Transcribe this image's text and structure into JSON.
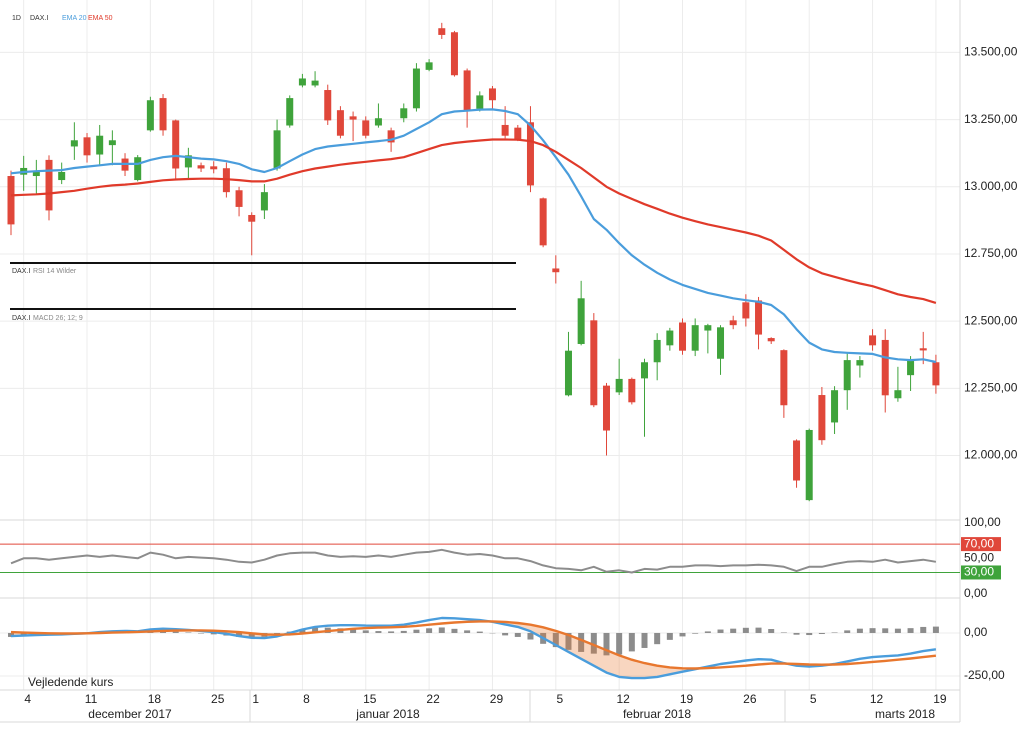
{
  "chart_data": [
    {
      "type": "candlestick",
      "interval": "1D",
      "footer": "Vejledende kurs",
      "categories": [
        null,
        "4",
        null,
        null,
        null,
        null,
        "11",
        null,
        null,
        null,
        null,
        "18",
        null,
        null,
        null,
        null,
        "25",
        null,
        null,
        "1",
        null,
        null,
        null,
        "8",
        null,
        null,
        null,
        null,
        "15",
        null,
        null,
        null,
        null,
        "22",
        null,
        null,
        null,
        null,
        "29",
        null,
        null,
        null,
        null,
        "5",
        null,
        null,
        null,
        null,
        "12",
        null,
        null,
        null,
        null,
        "19",
        null,
        null,
        null,
        null,
        "26",
        null,
        null,
        null,
        null,
        "5",
        null,
        null,
        null,
        null,
        "12",
        null,
        null,
        null,
        null,
        "19"
      ],
      "x_groups": [
        "december 2017",
        "januar 2018",
        "februar 2018",
        "marts 2018"
      ],
      "ylim": [
        11760,
        13695
      ],
      "yticks": [
        {
          "value": 12000,
          "label": "12.000,00"
        },
        {
          "value": 12250,
          "label": "12.250,00"
        },
        {
          "value": 12500,
          "label": "12.500,00"
        },
        {
          "value": 12750,
          "label": "12.750,00"
        },
        {
          "value": 13000,
          "label": "13.000,00"
        },
        {
          "value": 13250,
          "label": "13.250,00"
        },
        {
          "value": 13500,
          "label": "13.500,00"
        }
      ],
      "grid": true,
      "series": [
        {
          "name": "DAX.I",
          "up_color": "#3fa33b",
          "down_color": "#e0473a",
          "open": [
            13040,
            13045,
            13040,
            13100,
            13025,
            13150,
            13184,
            13120,
            13155,
            13105,
            13025,
            13210,
            13330,
            13247,
            13072,
            13080,
            13076,
            13069,
            12987,
            12895,
            12912,
            13068,
            13228,
            13377,
            13377,
            13360,
            13285,
            13262,
            13247,
            13228,
            13210,
            13255,
            13292,
            13435,
            13590,
            13575,
            13433,
            13290,
            13366,
            13230,
            13220,
            13240,
            12957,
            12696,
            12224,
            12415,
            12503,
            12260,
            12235,
            12285,
            12287,
            12347,
            12410,
            12495,
            12390,
            12465,
            12360,
            12503,
            12570,
            12577,
            12437,
            12392,
            12056,
            11834,
            12225,
            12123,
            12243,
            12335,
            12447,
            12430,
            12213,
            12299,
            12399,
            12347
          ],
          "high": [
            13060,
            13115,
            13100,
            13117,
            13090,
            13240,
            13200,
            13230,
            13210,
            13125,
            13118,
            13335,
            13345,
            13250,
            13145,
            13090,
            13095,
            13090,
            13000,
            12905,
            13010,
            13250,
            13340,
            13420,
            13430,
            13380,
            13300,
            13280,
            13262,
            13310,
            13220,
            13310,
            13460,
            13475,
            13610,
            13580,
            13440,
            13355,
            13375,
            13300,
            13230,
            13300,
            12960,
            12745,
            12460,
            12650,
            12530,
            12270,
            12360,
            12290,
            12360,
            12455,
            12475,
            12510,
            12510,
            12490,
            12485,
            12520,
            12600,
            12590,
            12440,
            12395,
            12060,
            12100,
            12255,
            12258,
            12380,
            12370,
            12470,
            12470,
            12330,
            12370,
            12460,
            12375
          ],
          "low": [
            12820,
            12985,
            12970,
            12875,
            13010,
            13100,
            13090,
            13080,
            13080,
            13040,
            13020,
            13205,
            13190,
            13030,
            13030,
            13055,
            13050,
            12960,
            12890,
            12745,
            12880,
            13060,
            13220,
            13370,
            13370,
            13230,
            13180,
            13170,
            13180,
            13220,
            13130,
            13240,
            13280,
            13430,
            13550,
            13410,
            13220,
            13280,
            13290,
            13180,
            13170,
            12980,
            12775,
            12640,
            12220,
            12410,
            12180,
            12000,
            12225,
            12190,
            12070,
            12280,
            12390,
            12375,
            12370,
            12380,
            12300,
            12470,
            12480,
            12395,
            12415,
            12140,
            11880,
            11830,
            12040,
            12080,
            12170,
            12290,
            12390,
            12160,
            12200,
            12240,
            12340,
            12230
          ],
          "close": [
            12860,
            13070,
            13060,
            12912,
            13055,
            13173,
            13117,
            13190,
            13173,
            13060,
            13110,
            13322,
            13210,
            13068,
            13117,
            13068,
            13065,
            12980,
            12925,
            12870,
            12980,
            13210,
            13330,
            13403,
            13395,
            13247,
            13190,
            13250,
            13190,
            13255,
            13165,
            13292,
            13440,
            13463,
            13565,
            13415,
            13285,
            13340,
            13322,
            13190,
            13175,
            13005,
            12782,
            12682,
            12390,
            12585,
            12187,
            12093,
            12285,
            12198,
            12347,
            12430,
            12465,
            12390,
            12485,
            12485,
            12477,
            12485,
            12510,
            12450,
            12425,
            12187,
            11907,
            12095,
            12057,
            12243,
            12355,
            12355,
            12410,
            12224,
            12243,
            12354,
            12391,
            12261
          ]
        },
        {
          "name": "EMA 20",
          "color": "#4a9ddc",
          "values": [
            13050,
            13055,
            13058,
            13060,
            13062,
            13070,
            13075,
            13080,
            13085,
            13085,
            13085,
            13100,
            13110,
            13115,
            13110,
            13105,
            13102,
            13095,
            13085,
            13065,
            13055,
            13070,
            13095,
            13120,
            13140,
            13150,
            13155,
            13160,
            13165,
            13170,
            13175,
            13190,
            13215,
            13240,
            13270,
            13280,
            13283,
            13287,
            13288,
            13282,
            13270,
            13228,
            13173,
            13110,
            13045,
            12965,
            12880,
            12840,
            12790,
            12745,
            12710,
            12680,
            12655,
            12635,
            12620,
            12605,
            12595,
            12585,
            12578,
            12572,
            12560,
            12525,
            12470,
            12420,
            12395,
            12385,
            12382,
            12380,
            12378,
            12365,
            12358,
            12355,
            12358,
            12348
          ]
        },
        {
          "name": "EMA 50",
          "color": "#e03a2a",
          "values": [
            12968,
            12970,
            12972,
            12975,
            12980,
            12985,
            12993,
            13000,
            13005,
            13008,
            13012,
            13018,
            13024,
            13027,
            13029,
            13030,
            13030,
            13028,
            13025,
            13020,
            13020,
            13030,
            13045,
            13058,
            13068,
            13075,
            13082,
            13088,
            13093,
            13098,
            13103,
            13110,
            13125,
            13140,
            13155,
            13163,
            13168,
            13172,
            13176,
            13176,
            13175,
            13170,
            13155,
            13130,
            13100,
            13070,
            13035,
            13000,
            12975,
            12955,
            12935,
            12918,
            12900,
            12885,
            12872,
            12860,
            12850,
            12840,
            12830,
            12818,
            12800,
            12765,
            12730,
            12700,
            12678,
            12665,
            12652,
            12640,
            12630,
            12615,
            12600,
            12590,
            12582,
            12568
          ]
        }
      ]
    },
    {
      "type": "line",
      "symbol": "DAX.I",
      "indicator": "RSI 14 Wilder",
      "ylim": [
        -6,
        104
      ],
      "yticks": [
        {
          "value": 100,
          "label": "100,00"
        },
        {
          "value": 70,
          "label": "70,00"
        },
        {
          "value": 50,
          "label": "50,00"
        },
        {
          "value": 30,
          "label": "30,00"
        },
        {
          "value": 0,
          "label": "0,00"
        }
      ],
      "levels": [
        {
          "value": 70,
          "color": "#e0473a"
        },
        {
          "value": 30,
          "color": "#3fa33b"
        }
      ],
      "series": [
        {
          "color": "#8c8c8c",
          "values": [
            43,
            50,
            50,
            48,
            50,
            52,
            54,
            52,
            54,
            52,
            50,
            58,
            55,
            50,
            52,
            51,
            50,
            48,
            45,
            44,
            48,
            54,
            57,
            58,
            58,
            54,
            52,
            53,
            52,
            54,
            52,
            55,
            58,
            59,
            62,
            58,
            55,
            56,
            54,
            50,
            50,
            46,
            40,
            36,
            35,
            33,
            38,
            31,
            33,
            30,
            35,
            34,
            38,
            38,
            40,
            40,
            39,
            40,
            40,
            41,
            40,
            38,
            32,
            38,
            38,
            42,
            45,
            46,
            45,
            48,
            44,
            46,
            48,
            45
          ]
        }
      ]
    },
    {
      "type": "macd",
      "symbol": "DAX.I",
      "indicator": "MACD 26; 12; 9",
      "ylim": [
        -331,
        203
      ],
      "yticks": [
        {
          "value": 0,
          "label": "0,00"
        },
        {
          "value": -250,
          "label": "-250,00"
        }
      ],
      "series": [
        {
          "kind": "bar",
          "color": "#8c8c8c",
          "values": [
            -23,
            -17,
            -12,
            -8,
            -5,
            -2,
            0,
            5,
            8,
            8,
            4,
            11,
            13,
            8,
            3,
            -3,
            -8,
            -15,
            -23,
            -26,
            -22,
            -10,
            8,
            23,
            31,
            31,
            27,
            21,
            15,
            11,
            9,
            12,
            19,
            27,
            32,
            24,
            15,
            8,
            -2,
            -14,
            -23,
            -38,
            -63,
            -82,
            -98,
            -110,
            -120,
            -130,
            -125,
            -107,
            -87,
            -65,
            -40,
            -20,
            -4,
            9,
            20,
            25,
            30,
            31,
            23,
            3,
            -10,
            -12,
            -6,
            3,
            15,
            25,
            28,
            27,
            25,
            28,
            35,
            37
          ]
        },
        {
          "kind": "line",
          "color": "#4a9ddc",
          "values": [
            -18,
            -15,
            -12,
            -10,
            -8,
            -5,
            -2,
            5,
            10,
            12,
            10,
            20,
            25,
            22,
            18,
            12,
            5,
            -5,
            -18,
            -28,
            -30,
            -20,
            0,
            20,
            35,
            42,
            45,
            45,
            43,
            42,
            42,
            48,
            60,
            75,
            87,
            85,
            80,
            75,
            65,
            50,
            35,
            10,
            -30,
            -70,
            -110,
            -150,
            -190,
            -230,
            -255,
            -262,
            -262,
            -255,
            -240,
            -225,
            -210,
            -195,
            -180,
            -170,
            -160,
            -152,
            -155,
            -175,
            -190,
            -195,
            -190,
            -180,
            -165,
            -150,
            -140,
            -135,
            -130,
            -120,
            -105,
            -95
          ]
        },
        {
          "kind": "line",
          "color": "#e8772e",
          "values": [
            5,
            2,
            0,
            -2,
            -3,
            -3,
            -2,
            0,
            2,
            4,
            6,
            9,
            12,
            14,
            15,
            15,
            13,
            10,
            5,
            -2,
            -8,
            -10,
            -8,
            -3,
            4,
            11,
            18,
            24,
            28,
            31,
            33,
            36,
            41,
            48,
            55,
            61,
            65,
            67,
            67,
            64,
            58,
            48,
            33,
            12,
            -12,
            -40,
            -70,
            -100,
            -130,
            -155,
            -175,
            -190,
            -200,
            -205,
            -206,
            -204,
            -200,
            -195,
            -190,
            -183,
            -178,
            -178,
            -180,
            -183,
            -184,
            -183,
            -180,
            -175,
            -168,
            -162,
            -155,
            -148,
            -140,
            -132
          ]
        }
      ]
    }
  ]
}
